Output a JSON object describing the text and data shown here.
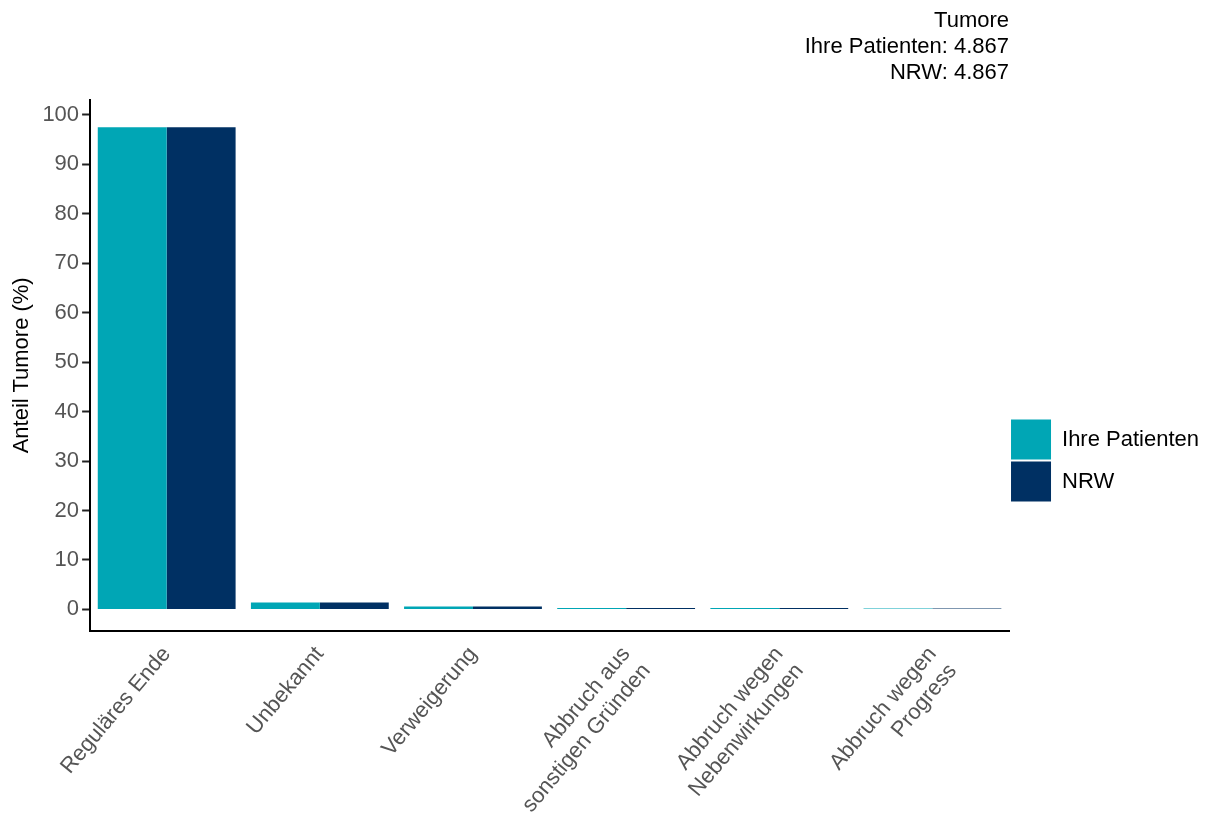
{
  "chart_data": {
    "type": "bar",
    "title": "Tumore",
    "subtitle": "Ihre Patienten: 4.867\nNRW: 4.867",
    "ylabel": "Anteil Tumore (%)",
    "categories": [
      "Reguläres Ende",
      "Unbekannt",
      "Verweigerung",
      "Abbruch aus\nsonstigen Gründen",
      "Abbruch wegen\nNebenwirkungen",
      "Abbruch wegen\nProgress"
    ],
    "series": [
      {
        "name": "Ihre Patienten",
        "color": "#00a6b5",
        "values": [
          97.5,
          1.4,
          0.6,
          0.3,
          0.3,
          0.2
        ]
      },
      {
        "name": "NRW",
        "color": "#003063",
        "values": [
          97.5,
          1.4,
          0.6,
          0.3,
          0.3,
          0.2
        ]
      }
    ],
    "ylim": [
      -4.3,
      103
    ],
    "yticks": [
      0,
      10,
      20,
      30,
      40,
      50,
      60,
      70,
      80,
      90,
      100
    ],
    "grid": false,
    "legend": "right"
  }
}
